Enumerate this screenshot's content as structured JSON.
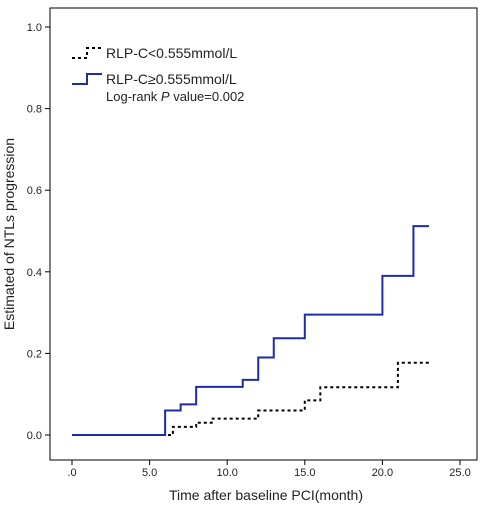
{
  "chart_data": {
    "type": "line",
    "subtype": "kaplan-meier-step",
    "xlabel": "Time after baseline PCI(month)",
    "ylabel": "Estimated of NTLs progression",
    "xlim": [
      0,
      25
    ],
    "ylim": [
      0,
      1.0
    ],
    "xticks": [
      0,
      5,
      10,
      15,
      20,
      25
    ],
    "xtick_labels": [
      ".0",
      "5.0",
      "10.0",
      "15.0",
      "20.0",
      "25.0"
    ],
    "yticks": [
      0,
      0.2,
      0.4,
      0.6,
      0.8,
      1.0
    ],
    "ytick_labels": [
      "0.0",
      "0.2",
      "0.4",
      "0.6",
      "0.8",
      "1.0"
    ],
    "grid": false,
    "legend_position": "top-left",
    "annotation": {
      "prefix": "Log-rank ",
      "italic": "P",
      "suffix": " value=0.002"
    },
    "series": [
      {
        "name": "RLP-C<0.555mmol/L",
        "color": "#000000",
        "style": "dotted",
        "x": [
          0,
          6,
          6.5,
          8,
          9,
          11,
          12,
          14,
          15,
          16,
          20,
          21,
          23
        ],
        "y": [
          0,
          0,
          0.02,
          0.03,
          0.04,
          0.04,
          0.06,
          0.06,
          0.085,
          0.117,
          0.117,
          0.177,
          0.177
        ]
      },
      {
        "name": "RLP-C≥0.555mmol/L",
        "color": "#1f2bab",
        "style": "solid",
        "x": [
          0,
          6,
          7,
          8,
          9,
          11,
          12,
          13,
          15,
          16,
          20,
          21,
          22,
          23
        ],
        "y": [
          0,
          0.06,
          0.075,
          0.118,
          0.118,
          0.135,
          0.19,
          0.237,
          0.295,
          0.295,
          0.39,
          0.39,
          0.512,
          0.512
        ]
      }
    ]
  }
}
